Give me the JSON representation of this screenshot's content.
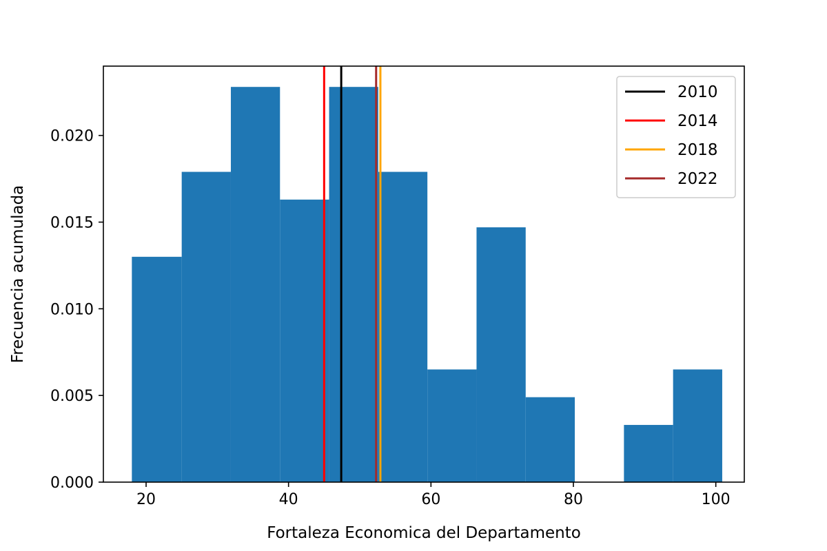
{
  "chart_data": {
    "type": "histogram",
    "title": "",
    "xlabel": "Fortaleza Economica del Departamento",
    "ylabel": "Frecuencia acumulada",
    "xlim": [
      14,
      104
    ],
    "ylim": [
      0,
      0.024
    ],
    "xticks": [
      20,
      40,
      60,
      80,
      100
    ],
    "yticks": [
      "0.000",
      "0.005",
      "0.010",
      "0.015",
      "0.020"
    ],
    "bar_color": "#1f77b4",
    "bins": [
      {
        "x0": 18.0,
        "x1": 25.0,
        "value": 0.013
      },
      {
        "x0": 25.0,
        "x1": 31.9,
        "value": 0.0179
      },
      {
        "x0": 31.9,
        "x1": 38.8,
        "value": 0.0228
      },
      {
        "x0": 38.8,
        "x1": 45.7,
        "value": 0.0163
      },
      {
        "x0": 45.7,
        "x1": 52.6,
        "value": 0.0228
      },
      {
        "x0": 52.6,
        "x1": 59.5,
        "value": 0.0179
      },
      {
        "x0": 59.5,
        "x1": 66.4,
        "value": 0.0065
      },
      {
        "x0": 66.4,
        "x1": 73.3,
        "value": 0.0147
      },
      {
        "x0": 73.3,
        "x1": 80.2,
        "value": 0.0049
      },
      {
        "x0": 80.2,
        "x1": 87.1,
        "value": 0.0
      },
      {
        "x0": 87.1,
        "x1": 94.0,
        "value": 0.0033
      },
      {
        "x0": 94.0,
        "x1": 100.9,
        "value": 0.0065
      }
    ],
    "vlines": [
      {
        "label": "2010",
        "x": 47.4,
        "color": "#000000"
      },
      {
        "label": "2014",
        "x": 45.0,
        "color": "#ff0000"
      },
      {
        "label": "2018",
        "x": 52.9,
        "color": "#ffa500"
      },
      {
        "label": "2022",
        "x": 52.3,
        "color": "#a52a2a"
      }
    ],
    "legend": {
      "position": "top-right",
      "entries": [
        "2010",
        "2014",
        "2018",
        "2022"
      ]
    }
  }
}
